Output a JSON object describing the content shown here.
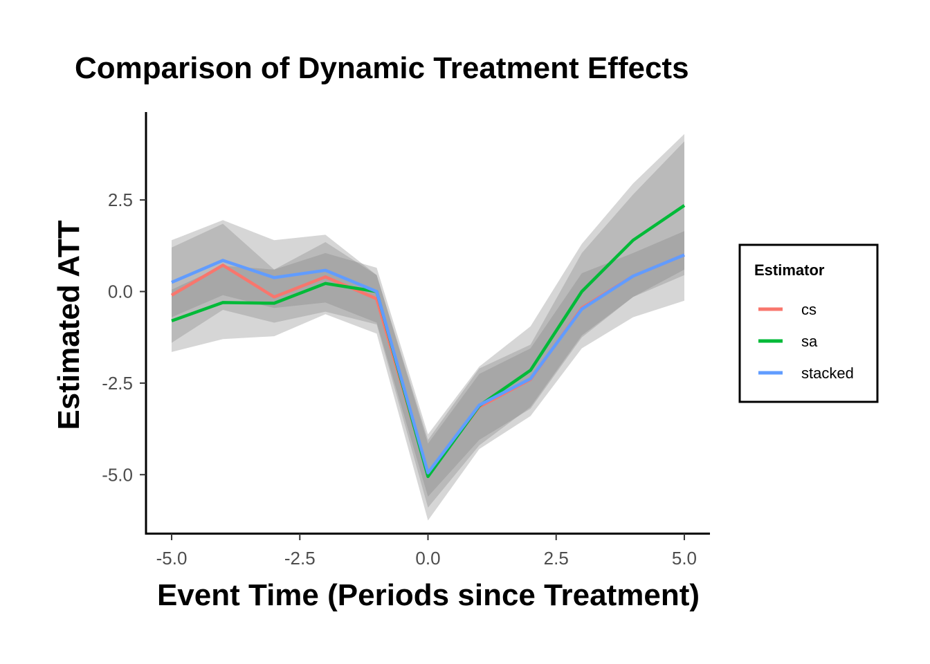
{
  "chart_data": {
    "type": "line",
    "title": "Comparison of Dynamic Treatment Effects",
    "xlabel": "Event Time (Periods since Treatment)",
    "ylabel": "Estimated ATT",
    "xlim": [
      -5.5,
      5.5
    ],
    "ylim": [
      -6.6,
      4.9
    ],
    "x_ticks": [
      -5.0,
      -2.5,
      0.0,
      2.5,
      5.0
    ],
    "x_tick_labels": [
      "-5.0",
      "-2.5",
      "0.0",
      "2.5",
      "5.0"
    ],
    "y_ticks": [
      2.5,
      0.0,
      -2.5,
      -5.0
    ],
    "y_tick_labels": [
      "2.5",
      "0.0",
      "-2.5",
      "-5.0"
    ],
    "grid": false,
    "legend": {
      "title": "Estimator",
      "position": "right"
    },
    "x": [
      -5,
      -4,
      -3,
      -2,
      -1,
      0,
      1,
      2,
      3,
      4,
      5
    ],
    "series": [
      {
        "name": "cs",
        "color": "#F8766D",
        "values": [
          -0.1,
          0.72,
          -0.15,
          0.4,
          -0.2,
          -5.0,
          -3.15,
          -2.4,
          -0.45,
          0.42,
          1.0
        ],
        "lower": [
          -1.4,
          -0.5,
          -0.85,
          -0.55,
          -0.9,
          -5.9,
          -4.2,
          -3.15,
          -1.2,
          -0.15,
          0.6
        ],
        "upper": [
          1.2,
          1.85,
          0.6,
          1.35,
          0.45,
          -4.15,
          -2.25,
          -1.55,
          0.5,
          1.05,
          1.65
        ]
      },
      {
        "name": "sa",
        "color": "#00BA38",
        "values": [
          -0.8,
          -0.3,
          -0.32,
          0.22,
          0.0,
          -5.05,
          -3.12,
          -2.15,
          0.0,
          1.4,
          2.35
        ],
        "lower": [
          -1.65,
          -1.3,
          -1.22,
          -0.62,
          -1.15,
          -6.25,
          -4.3,
          -3.4,
          -1.55,
          -0.7,
          -0.25
        ],
        "upper": [
          0.05,
          0.7,
          0.6,
          1.05,
          0.65,
          -3.9,
          -2.05,
          -0.95,
          1.3,
          2.95,
          4.3
        ]
      },
      {
        "name": "stacked",
        "color": "#619CFF",
        "values": [
          0.25,
          0.85,
          0.38,
          0.58,
          0.0,
          -4.95,
          -3.1,
          -2.38,
          -0.48,
          0.42,
          1.0
        ],
        "lower": [
          -0.7,
          -0.1,
          -0.45,
          -0.3,
          -0.85,
          -5.6,
          -4.05,
          -3.2,
          -1.25,
          -0.15,
          0.45
        ],
        "upper": [
          1.4,
          1.95,
          1.4,
          1.55,
          0.45,
          -4.05,
          -2.1,
          -1.45,
          1.05,
          2.65,
          4.1
        ]
      }
    ]
  }
}
